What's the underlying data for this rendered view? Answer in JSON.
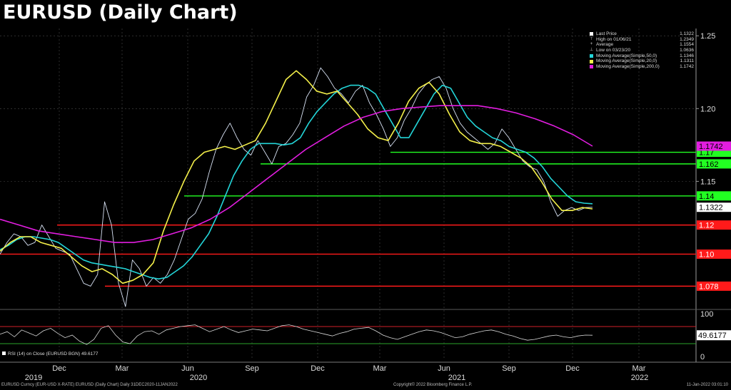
{
  "title": "EURUSD (Daily Chart)",
  "colors": {
    "background": "#000000",
    "price": "#d8e2f4",
    "ma50": "#23d5d8",
    "ma20": "#f4f04a",
    "ma200": "#e21de0",
    "support_resistance": "#ff1a1a",
    "green_lines": "#22ff22",
    "grid": "#4a4a4a",
    "rsi": "#d9d9d9",
    "rsi_upper": "#d0202a",
    "rsi_lower": "#2aa52a"
  },
  "legend": [
    {
      "glyph": "■",
      "label": "Last Price",
      "value": "1.1322",
      "color": "#ffffff"
    },
    {
      "glyph": "⊤",
      "label": "High on 01/06/21",
      "value": "1.2349",
      "color": ""
    },
    {
      "glyph": "+",
      "label": "Average",
      "value": "1.1554",
      "color": ""
    },
    {
      "glyph": "⊥",
      "label": "Low on 03/23/20",
      "value": "1.0636",
      "color": ""
    },
    {
      "glyph": "",
      "label": "Moving Average(Simple,50,0)",
      "value": "1.1346",
      "color": "#23d5d8"
    },
    {
      "glyph": "",
      "label": "Moving Average(Simple,20,0)",
      "value": "1.1311",
      "color": "#f4f04a"
    },
    {
      "glyph": "",
      "label": "Moving Average(Simple,200,0)",
      "value": "1.1742",
      "color": "#e21de0"
    }
  ],
  "rsi_label": "RSI (14)  on Close (EURUSD BGN) 49.6177",
  "footer": {
    "left": "EURUSD Curncy (EUR-USD X-RATE) EURUSD (Daily Chart)  Daily 31DEC2020-11JAN2022",
    "mid": "Copyright© 2022 Bloomberg Finance L.P.",
    "right": "11-Jan-2022 03:01:10"
  },
  "chart_data": [
    {
      "type": "line",
      "y_axis_ticks": [
        "1.25",
        "1.20",
        "1.15"
      ],
      "ylim": [
        1.063,
        1.255
      ],
      "x_month_labels": [
        "Dec",
        "Mar",
        "Jun",
        "Sep",
        "Dec",
        "Mar",
        "Jun",
        "Sep",
        "Dec",
        "Mar"
      ],
      "x_year_labels": [
        "2019",
        "2020",
        "2021",
        "2022"
      ],
      "series": [
        {
          "name": "Last Price",
          "color": "#d8e2f4",
          "values": [
            1.1,
            1.108,
            1.114,
            1.112,
            1.106,
            1.108,
            1.12,
            1.112,
            1.104,
            1.102,
            1.1,
            1.09,
            1.08,
            1.078,
            1.086,
            1.136,
            1.12,
            1.08,
            1.064,
            1.096,
            1.09,
            1.078,
            1.084,
            1.08,
            1.086,
            1.096,
            1.11,
            1.124,
            1.128,
            1.138,
            1.156,
            1.172,
            1.182,
            1.19,
            1.18,
            1.172,
            1.168,
            1.178,
            1.17,
            1.162,
            1.174,
            1.176,
            1.182,
            1.19,
            1.208,
            1.216,
            1.228,
            1.222,
            1.214,
            1.21,
            1.204,
            1.212,
            1.216,
            1.204,
            1.196,
            1.186,
            1.174,
            1.18,
            1.192,
            1.2,
            1.21,
            1.216,
            1.22,
            1.222,
            1.214,
            1.2,
            1.19,
            1.184,
            1.18,
            1.176,
            1.172,
            1.176,
            1.186,
            1.18,
            1.172,
            1.164,
            1.16,
            1.158,
            1.15,
            1.136,
            1.126,
            1.13,
            1.132,
            1.13,
            1.132,
            1.1322
          ]
        },
        {
          "name": "Moving Average(Simple,50,0)",
          "color": "#23d5d8",
          "values": [
            1.103,
            1.106,
            1.11,
            1.112,
            1.112,
            1.111,
            1.11,
            1.108,
            1.104,
            1.1,
            1.096,
            1.094,
            1.093,
            1.092,
            1.091,
            1.09,
            1.088,
            1.086,
            1.084,
            1.083,
            1.084,
            1.088,
            1.092,
            1.098,
            1.106,
            1.114,
            1.126,
            1.14,
            1.154,
            1.164,
            1.172,
            1.176,
            1.176,
            1.176,
            1.175,
            1.176,
            1.18,
            1.19,
            1.198,
            1.204,
            1.21,
            1.214,
            1.216,
            1.216,
            1.214,
            1.21,
            1.2,
            1.19,
            1.18,
            1.18,
            1.19,
            1.2,
            1.21,
            1.216,
            1.214,
            1.204,
            1.194,
            1.188,
            1.184,
            1.18,
            1.178,
            1.174,
            1.172,
            1.17,
            1.166,
            1.16,
            1.152,
            1.146,
            1.14,
            1.136,
            1.135,
            1.1346
          ]
        },
        {
          "name": "Moving Average(Simple,20,0)",
          "color": "#f4f04a",
          "values": [
            1.102,
            1.108,
            1.112,
            1.112,
            1.108,
            1.106,
            1.104,
            1.098,
            1.092,
            1.088,
            1.09,
            1.086,
            1.08,
            1.082,
            1.086,
            1.094,
            1.116,
            1.134,
            1.15,
            1.164,
            1.17,
            1.172,
            1.174,
            1.172,
            1.175,
            1.178,
            1.19,
            1.205,
            1.22,
            1.226,
            1.22,
            1.212,
            1.21,
            1.212,
            1.204,
            1.196,
            1.186,
            1.18,
            1.178,
            1.19,
            1.205,
            1.214,
            1.218,
            1.21,
            1.196,
            1.184,
            1.178,
            1.176,
            1.176,
            1.174,
            1.17,
            1.166,
            1.16,
            1.15,
            1.138,
            1.13,
            1.13,
            1.132,
            1.1311
          ]
        },
        {
          "name": "Moving Average(Simple,200,0)",
          "color": "#e21de0",
          "values": [
            1.124,
            1.12,
            1.116,
            1.114,
            1.112,
            1.11,
            1.108,
            1.108,
            1.11,
            1.114,
            1.118,
            1.124,
            1.132,
            1.142,
            1.152,
            1.162,
            1.172,
            1.18,
            1.188,
            1.194,
            1.198,
            1.2,
            1.201,
            1.202,
            1.202,
            1.202,
            1.2,
            1.197,
            1.193,
            1.188,
            1.182,
            1.1742
          ]
        }
      ],
      "horizontal_levels": [
        {
          "label": "1.12",
          "value": 1.12,
          "color": "#ff1a1a"
        },
        {
          "label": "1.10",
          "value": 1.1,
          "color": "#ff1a1a"
        },
        {
          "label": "1.078",
          "value": 1.078,
          "color": "#ff1a1a"
        },
        {
          "label": "1.17",
          "value": 1.17,
          "color": "#22ff22"
        },
        {
          "label": "1.162",
          "value": 1.162,
          "color": "#22ff22"
        },
        {
          "label": "1.14",
          "value": 1.14,
          "color": "#22ff22"
        }
      ],
      "price_tags": [
        {
          "label": "1.1742",
          "value": 1.1742,
          "color": "#e21de0"
        },
        {
          "label": "1.1322",
          "value": 1.1322,
          "color": "#ffffff"
        }
      ]
    },
    {
      "type": "line",
      "name": "RSI (14)",
      "y_axis_ticks": [
        "100",
        "50",
        "0"
      ],
      "ylim": [
        0,
        100
      ],
      "upper_band": 70,
      "lower_band": 30,
      "last_value": "49.6177",
      "series": [
        {
          "name": "RSI (14)",
          "color": "#d9d9d9",
          "values": [
            52,
            58,
            46,
            62,
            55,
            48,
            60,
            66,
            54,
            44,
            50,
            36,
            28,
            40,
            66,
            72,
            50,
            34,
            30,
            48,
            58,
            60,
            52,
            62,
            66,
            70,
            72,
            74,
            66,
            58,
            64,
            70,
            62,
            56,
            60,
            64,
            62,
            60,
            66,
            72,
            74,
            70,
            64,
            60,
            56,
            52,
            48,
            54,
            58,
            64,
            66,
            68,
            60,
            50,
            44,
            40,
            46,
            52,
            58,
            62,
            60,
            56,
            50,
            44,
            46,
            52,
            56,
            60,
            62,
            58,
            52,
            48,
            42,
            38,
            40,
            44,
            48,
            50,
            46,
            44,
            48,
            50,
            49.6
          ]
        }
      ]
    }
  ]
}
